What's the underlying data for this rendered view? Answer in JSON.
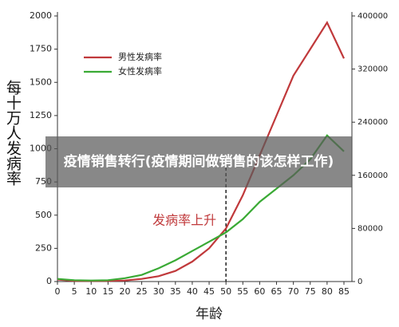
{
  "chart_data": {
    "type": "line",
    "title": "疫情销售转行(疫情期间做销售的该怎样工作)",
    "x_label": "年龄",
    "y_label": "每十万人发病率",
    "x": [
      0,
      5,
      10,
      15,
      20,
      25,
      30,
      35,
      40,
      45,
      50,
      55,
      60,
      65,
      70,
      75,
      80,
      85
    ],
    "series": [
      {
        "name": "男性发病率",
        "color": "#c0393b",
        "values": [
          15,
          5,
          5,
          5,
          8,
          20,
          40,
          80,
          150,
          250,
          400,
          650,
          950,
          1250,
          1550,
          1750,
          1950,
          1680
        ]
      },
      {
        "name": "女性发病率",
        "color": "#3aaa35",
        "values": [
          20,
          10,
          8,
          10,
          25,
          50,
          100,
          160,
          230,
          300,
          370,
          470,
          600,
          700,
          800,
          920,
          1100,
          980
        ]
      }
    ],
    "xlim": [
      0,
      85
    ],
    "xticks": [
      0,
      5,
      10,
      15,
      20,
      25,
      30,
      35,
      40,
      45,
      50,
      55,
      60,
      65,
      70,
      75,
      80,
      85
    ],
    "ylim": [
      0,
      2000
    ],
    "yticks": [
      0,
      250,
      500,
      750,
      1000,
      1250,
      1500,
      1750,
      2000
    ],
    "y2lim": [
      0,
      400000
    ],
    "y2ticks": [
      0,
      80000,
      160000,
      240000,
      320000,
      400000
    ],
    "annotation": {
      "text": "发病率上升",
      "x": 50
    }
  }
}
